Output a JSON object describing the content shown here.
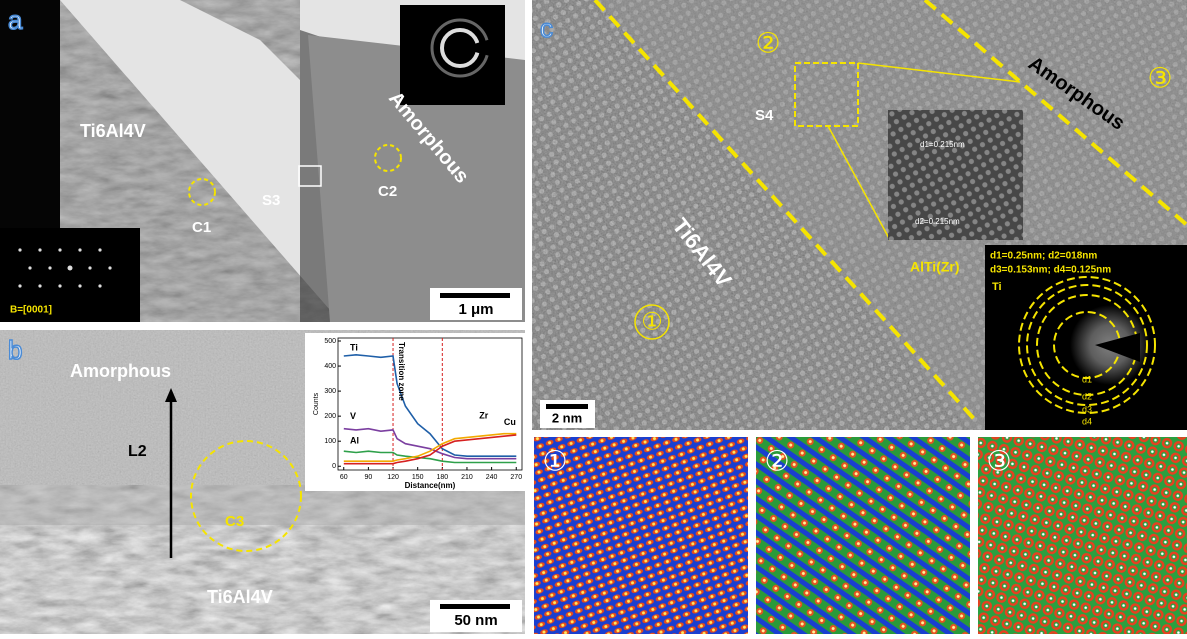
{
  "panel_a": {
    "label": "a",
    "material": "Ti6Al4V",
    "amorphous": "Amorphous",
    "circle1": "C1",
    "circle2": "C2",
    "box": "S3",
    "zone_axis": "B=[0001]",
    "scale_bar": "1 μm"
  },
  "panel_b": {
    "label": "b",
    "amorphous": "Amorphous",
    "material": "Ti6Al4V",
    "arrow": "L2",
    "circle": "C3",
    "scale_bar": "50 nm",
    "chart_data": {
      "type": "line",
      "x_label": "Distance(nm)",
      "y_label": "Counts",
      "annotation": "Transition zone",
      "xlim": [
        53,
        277
      ],
      "ylim": [
        -15,
        512
      ],
      "xticks": [
        60,
        90,
        120,
        150,
        180,
        210,
        240,
        270
      ],
      "yticks": [
        0,
        100,
        200,
        300,
        400,
        500
      ],
      "vlines": [
        120,
        180
      ],
      "x": [
        60,
        75,
        90,
        105,
        120,
        125,
        135,
        150,
        165,
        180,
        195,
        210,
        225,
        240,
        255,
        270
      ],
      "series": [
        {
          "name": "Ti",
          "color": "#1f5fa8",
          "values": [
            440,
            445,
            440,
            435,
            440,
            330,
            240,
            170,
            130,
            70,
            45,
            40,
            40,
            40,
            40,
            40
          ]
        },
        {
          "name": "V",
          "color": "#7b3fa0",
          "values": [
            150,
            145,
            150,
            140,
            145,
            110,
            90,
            80,
            70,
            50,
            35,
            30,
            30,
            30,
            30,
            30
          ]
        },
        {
          "name": "Al",
          "color": "#2ea04a",
          "values": [
            60,
            55,
            60,
            55,
            55,
            45,
            40,
            35,
            30,
            20,
            15,
            15,
            15,
            15,
            15,
            15
          ]
        },
        {
          "name": "Zr",
          "color": "#f2a900",
          "values": [
            20,
            20,
            20,
            20,
            20,
            25,
            30,
            40,
            60,
            90,
            110,
            115,
            120,
            125,
            130,
            130
          ]
        },
        {
          "name": "Cu",
          "color": "#d62020",
          "values": [
            10,
            10,
            10,
            10,
            10,
            15,
            20,
            30,
            45,
            80,
            100,
            105,
            110,
            115,
            120,
            125
          ]
        }
      ]
    }
  },
  "panel_c": {
    "label": "c",
    "material": "Ti6Al4V",
    "amorphous": "Amorphous",
    "box": "S4",
    "region1": "①",
    "region2": "②",
    "region3": "③",
    "fft_d1": "d1=0.215nm",
    "fft_d2": "d2=0.215nm",
    "phase": "AlTi(Zr)",
    "saed_line1": "d1=0.25nm;  d2=018nm",
    "saed_line2": "d3=0.153nm; d4=0.125nm",
    "saed_phase": "Ti",
    "ring1": "d1",
    "ring2": "d2",
    "ring3": "d3",
    "ring4": "d4",
    "scale_bar": "2 nm"
  },
  "bottom_panels": [
    "①",
    "②",
    "③"
  ]
}
